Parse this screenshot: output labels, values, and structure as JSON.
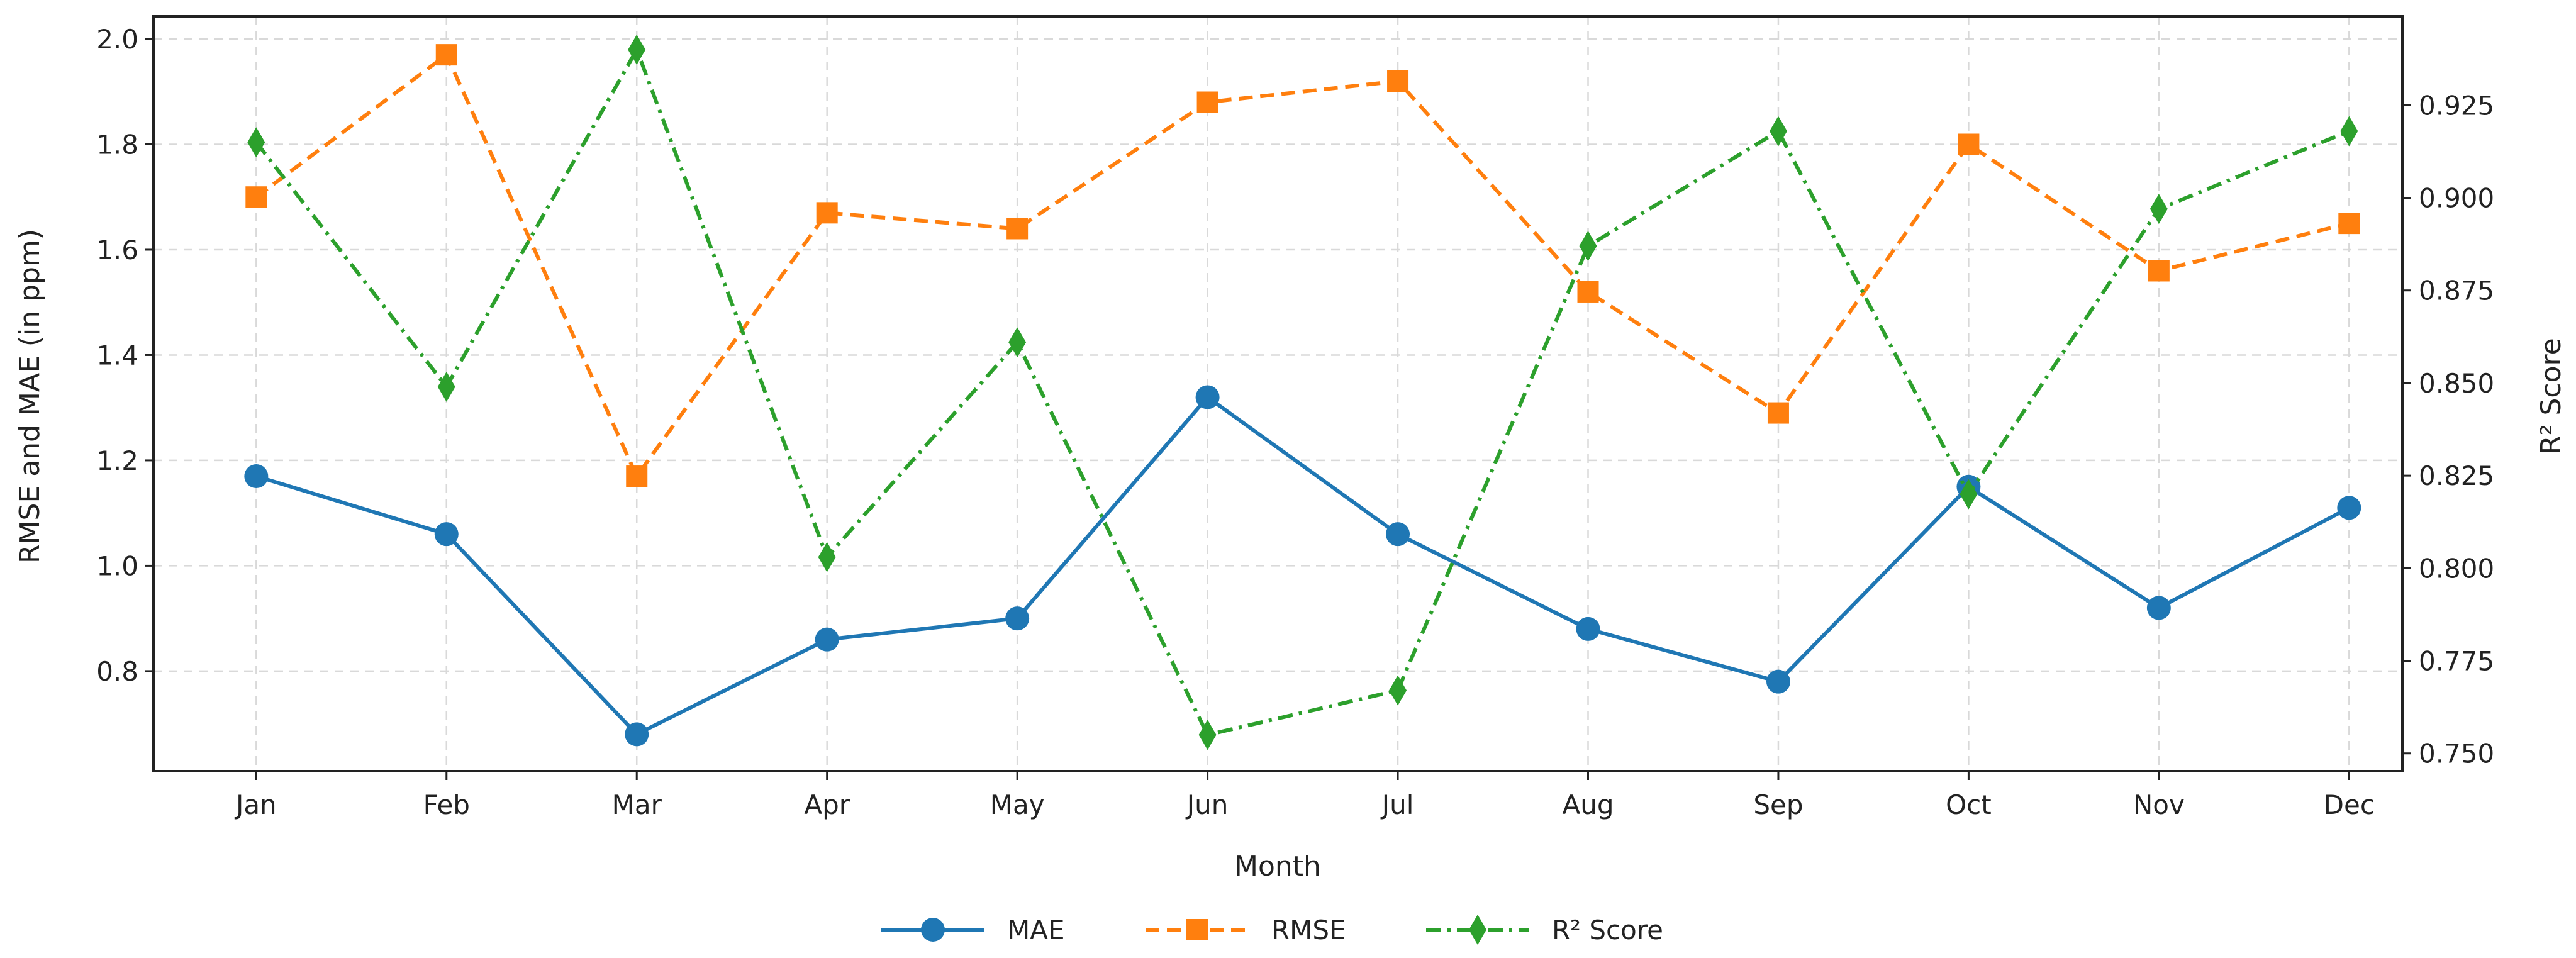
{
  "chart_data": {
    "type": "line",
    "xlabel": "Month",
    "ylabel_left": "RMSE and MAE (in ppm)",
    "ylabel_right": "R² Score",
    "categories": [
      "Jan",
      "Feb",
      "Mar",
      "Apr",
      "May",
      "Jun",
      "Jul",
      "Aug",
      "Sep",
      "Oct",
      "Nov",
      "Dec"
    ],
    "ylim_left": [
      0.61,
      2.043
    ],
    "ylim_right": [
      0.7452,
      0.949
    ],
    "yticks_left": [
      "0.8",
      "1.0",
      "1.2",
      "1.4",
      "1.6",
      "1.8",
      "2.0"
    ],
    "yticks_right": [
      "0.750",
      "0.775",
      "0.800",
      "0.825",
      "0.850",
      "0.875",
      "0.900",
      "0.925"
    ],
    "grid": true,
    "legend_placement": "bottom-center",
    "series": [
      {
        "name": "MAE",
        "axis": "left",
        "color": "#1f77b4",
        "marker": "circle",
        "linestyle": "solid",
        "values": [
          1.17,
          1.06,
          0.68,
          0.86,
          0.9,
          1.32,
          1.06,
          0.88,
          0.78,
          1.15,
          0.92,
          1.11
        ]
      },
      {
        "name": "RMSE",
        "axis": "left",
        "color": "#ff7f0e",
        "marker": "square",
        "linestyle": "dashed",
        "values": [
          1.7,
          1.97,
          1.17,
          1.67,
          1.64,
          1.88,
          1.92,
          1.52,
          1.29,
          1.8,
          1.56,
          1.65
        ]
      },
      {
        "name": "R² Score",
        "axis": "right",
        "color": "#2ca02c",
        "marker": "diamond",
        "linestyle": "dashdot",
        "values": [
          0.915,
          0.849,
          0.94,
          0.803,
          0.861,
          0.755,
          0.767,
          0.887,
          0.918,
          0.82,
          0.897,
          0.918
        ]
      }
    ]
  }
}
